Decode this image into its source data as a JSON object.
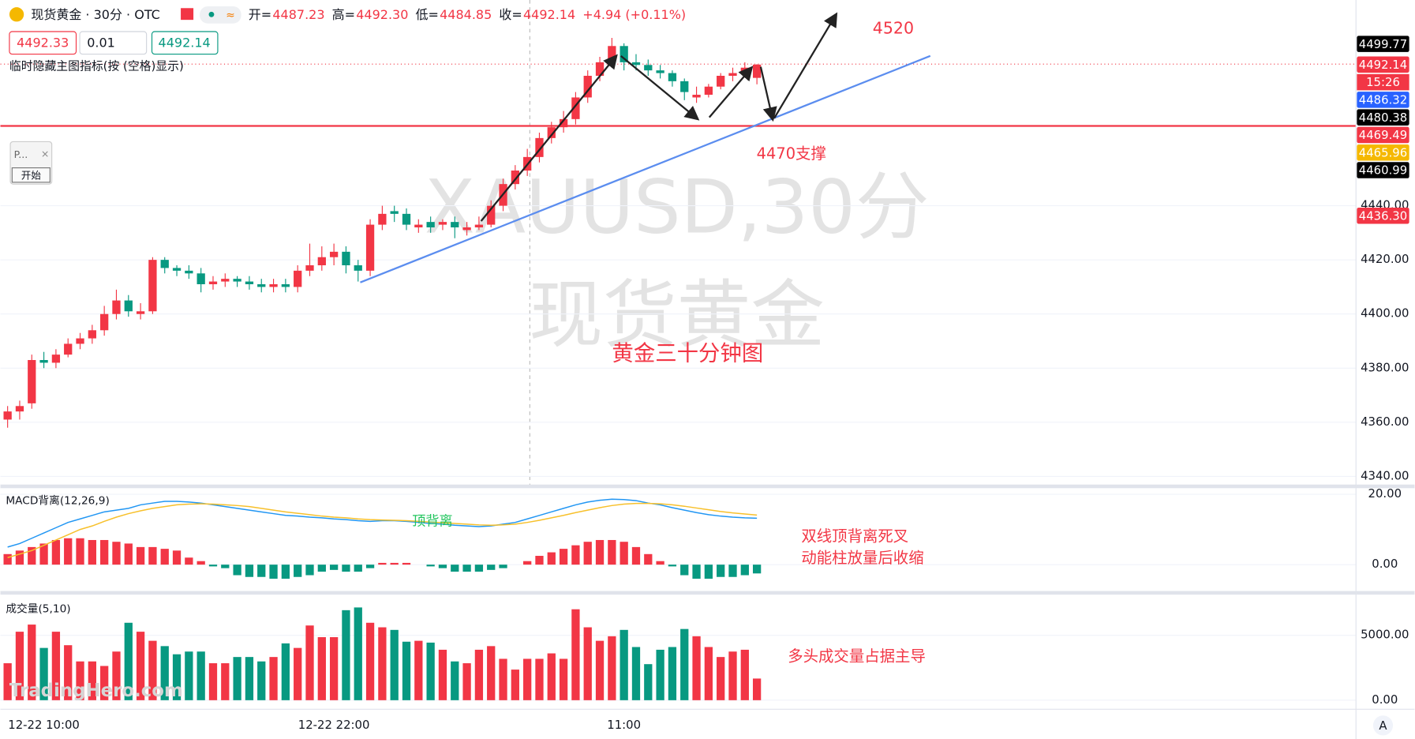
{
  "header": {
    "title": "现货黄金 · 30分 · OTC",
    "ohlc": [
      {
        "name": "开=",
        "value": "4487.23"
      },
      {
        "name": "高=",
        "value": "4492.30"
      },
      {
        "name": "低=",
        "value": "4484.85"
      },
      {
        "name": "收=",
        "value": "4492.14"
      }
    ],
    "change": "+4.94 (+0.11%)",
    "sell": "4492.33",
    "qty": "0.01",
    "buy": "4492.14",
    "hint": "临时隐藏主图指标(按 (空格)显示)",
    "widget": "P...",
    "widget_button": "开始",
    "watermark": "TradingHero.com",
    "auto": "A"
  },
  "chart_data": {
    "type": "candlestick",
    "watermark": [
      "XAUUSD,30分",
      "现货黄金"
    ],
    "categories": [
      null,
      null,
      null,
      "12-22 10:00",
      null,
      null,
      null,
      null,
      null,
      null,
      null,
      null,
      null,
      null,
      null,
      null,
      null,
      null,
      null,
      null,
      null,
      null,
      null,
      null,
      null,
      null,
      null,
      "12-22 22:00",
      null,
      null,
      null,
      null,
      null,
      null,
      null,
      null,
      null,
      null,
      null,
      null,
      null,
      null,
      null,
      null,
      null,
      null,
      null,
      null,
      null,
      null,
      null,
      "11:00",
      null,
      null,
      null,
      null,
      null,
      null,
      null,
      null,
      null,
      null,
      null
    ],
    "open": [
      4361,
      4364,
      4367,
      4383,
      4382,
      4385,
      4389,
      4391,
      4394,
      4400,
      4405,
      4400,
      4401,
      4420,
      4417,
      4416,
      4415,
      4411,
      4412,
      4413,
      4412,
      4411,
      4410,
      4411,
      4410,
      4416,
      4418,
      4421,
      4423,
      4418,
      4416,
      4433,
      4438,
      4437,
      4432,
      4434,
      4433,
      4434,
      4431,
      4432,
      4433,
      4440,
      4448,
      4453,
      4458,
      4465,
      4469,
      4472,
      4480,
      4488,
      4493,
      4499,
      4493,
      4492,
      4490,
      4489,
      4486,
      4480,
      4481,
      4484,
      4488,
      4489,
      4487.23
    ],
    "high": [
      4366,
      4368,
      4385,
      4386,
      4387,
      4391,
      4393,
      4396,
      4403,
      4409,
      4407,
      4404,
      4421,
      4421,
      4418,
      4418,
      4417,
      4414,
      4415,
      4414,
      4414,
      4413,
      4413,
      4413,
      4418,
      4426,
      4425,
      4426,
      4425,
      4420,
      4435,
      4440,
      4440,
      4439,
      4435,
      4436,
      4435,
      4436,
      4434,
      4436,
      4442,
      4450,
      4455,
      4461,
      4467,
      4471,
      4475,
      4482,
      4490,
      4495,
      4502,
      4500,
      4496,
      4494,
      4492,
      4490,
      4487,
      4484,
      4485,
      4489,
      4491,
      4493,
      4492.3
    ],
    "low": [
      4358,
      4361,
      4365,
      4380,
      4380,
      4384,
      4387,
      4389,
      4392,
      4398,
      4399,
      4398,
      4400,
      4415,
      4414,
      4413,
      4408,
      4409,
      4410,
      4410,
      4409,
      4408,
      4408,
      4408,
      4408,
      4414,
      4416,
      4418,
      4415,
      4412,
      4414,
      4431,
      4434,
      4431,
      4430,
      4430,
      4431,
      4428,
      4429,
      4431,
      4432,
      4438,
      4446,
      4451,
      4456,
      4463,
      4467,
      4470,
      4478,
      4486,
      4491,
      4490,
      4490,
      4488,
      4487,
      4484,
      4479,
      4478,
      4480,
      4483,
      4486,
      4488,
      4484.85
    ],
    "close": [
      4364,
      4366,
      4383,
      4382,
      4385,
      4389,
      4391,
      4394,
      4400,
      4405,
      4401,
      4401,
      4420,
      4417,
      4416,
      4415,
      4411,
      4412,
      4413,
      4412,
      4411,
      4410,
      4411,
      4410,
      4416,
      4418,
      4421,
      4423,
      4418,
      4416,
      4433,
      4437,
      4437,
      4433,
      4433,
      4432,
      4434,
      4432,
      4432,
      4433,
      4440,
      4448,
      4453,
      4458,
      4465,
      4469,
      4472,
      4480,
      4488,
      4493,
      4499,
      4493,
      4492,
      4490,
      4489,
      4486,
      4482,
      4481,
      4484,
      4488,
      4489,
      4491,
      4492.14
    ],
    "up_color": "#f23645",
    "down_color": "#089981",
    "ylim": [
      4336,
      4516
    ],
    "yticks": [
      {
        "value": 4340,
        "label": "4340.00"
      },
      {
        "value": 4360,
        "label": "4360.00"
      },
      {
        "value": 4380,
        "label": "4380.00"
      },
      {
        "value": 4400,
        "label": "4400.00"
      },
      {
        "value": 4420,
        "label": "4420.00"
      },
      {
        "value": 4440,
        "label": "4440.00"
      }
    ],
    "price_labels": {
      "values": [
        4499.77,
        4492.14,
        4486.32,
        4480.38,
        4469.49,
        4465.96,
        4460.99,
        4436.3
      ],
      "value_labels": [
        "4499.77",
        "4492.14",
        "4486.32",
        "4480.38",
        "4469.49",
        "4465.96",
        "4460.99",
        "4436.30"
      ],
      "colors": [
        "#000000",
        "#f23645",
        "#2962ff",
        "#000000",
        "#f23645",
        "#f5b800",
        "#000000",
        "#f23645"
      ]
    },
    "countdown": "15:26",
    "macd": {
      "name": "MACD背离(12,26,9)",
      "ylim": [
        -7.5,
        22
      ],
      "yticks": [
        {
          "value": 0,
          "label": "0.00"
        },
        {
          "value": 20,
          "label": "20.00"
        }
      ],
      "histogram": [
        3,
        4,
        5,
        6,
        7,
        7.5,
        7.5,
        7,
        7,
        6.5,
        6,
        5,
        5,
        4.5,
        4,
        2,
        1,
        -0.5,
        -1,
        -3,
        -3.5,
        -3.5,
        -4,
        -4,
        -3.5,
        -3,
        -2,
        -1.5,
        -2,
        -2,
        -1,
        0.5,
        0.5,
        0.5,
        0,
        -0.5,
        -1,
        -2,
        -2,
        -2,
        -1.5,
        -1,
        0,
        1,
        2.5,
        3.5,
        4.5,
        5.5,
        6.5,
        7,
        7,
        6.5,
        5,
        3,
        1,
        -0.5,
        -3,
        -4,
        -4,
        -3.5,
        -3.5,
        -3,
        -2.5
      ],
      "series": [
        {
          "color": "#2196f3",
          "values": [
            5,
            6,
            7.5,
            9,
            10.5,
            12,
            13,
            14,
            15,
            15.5,
            16,
            17,
            17.5,
            18,
            18,
            17.8,
            17.5,
            17,
            16.5,
            16,
            15.5,
            15,
            14.5,
            14,
            13.8,
            13.5,
            13.3,
            13,
            12.8,
            12.5,
            12.3,
            12.5,
            12.5,
            12.3,
            12,
            11.7,
            11.5,
            11.2,
            11,
            10.8,
            11,
            11.5,
            12,
            13,
            14,
            15,
            16,
            17,
            17.8,
            18.3,
            18.6,
            18.5,
            18.2,
            17.5,
            17,
            16.2,
            15.5,
            14.8,
            14.2,
            13.8,
            13.5,
            13.3,
            13.2
          ]
        },
        {
          "color": "#f7c02b",
          "values": [
            2,
            3,
            4,
            5.5,
            7,
            8.5,
            10,
            11,
            12.3,
            13.5,
            14.5,
            15.3,
            16,
            16.5,
            17,
            17.2,
            17.3,
            17.2,
            17,
            16.8,
            16.5,
            16,
            15.5,
            15,
            14.6,
            14.2,
            13.8,
            13.5,
            13.3,
            13,
            12.8,
            12.7,
            12.6,
            12.5,
            12.3,
            12.1,
            11.9,
            11.7,
            11.5,
            11.3,
            11.2,
            11.3,
            11.5,
            12,
            12.6,
            13.3,
            14,
            14.8,
            15.5,
            16.2,
            16.8,
            17.2,
            17.4,
            17.4,
            17.3,
            17,
            16.6,
            16.1,
            15.6,
            15.1,
            14.7,
            14.4,
            14.1
          ]
        }
      ]
    },
    "volume": {
      "name": "成交量(5,10)",
      "ylim": [
        0,
        8000
      ],
      "yticks": [
        {
          "value": 0,
          "label": "0.00"
        },
        {
          "value": 5000,
          "label": "5000.00"
        }
      ],
      "values": [
        2850,
        5280,
        5830,
        4030,
        5280,
        4240,
        2990,
        2990,
        2640,
        3750,
        5970,
        5280,
        4580,
        4170,
        3540,
        3750,
        3750,
        2850,
        2850,
        3330,
        3330,
        2990,
        3330,
        4380,
        4030,
        5760,
        4860,
        4860,
        6940,
        7150,
        5970,
        5620,
        5420,
        4510,
        4580,
        4440,
        3890,
        2990,
        2850,
        3890,
        4170,
        3190,
        2360,
        3190,
        3190,
        3610,
        3190,
        7010,
        5620,
        4580,
        4930,
        5420,
        4100,
        2780,
        3890,
        4100,
        5490,
        4930,
        4100,
        3330,
        3750,
        3890,
        1670
      ]
    },
    "annotations": {
      "target": "4520",
      "support": "4470支撑",
      "caption": "黄金三十分钟图",
      "divergence": "顶背离",
      "macd_note": [
        "双线顶背离死叉",
        "动能柱放量后收缩"
      ],
      "volume_note": "多头成交量占据主导"
    }
  }
}
